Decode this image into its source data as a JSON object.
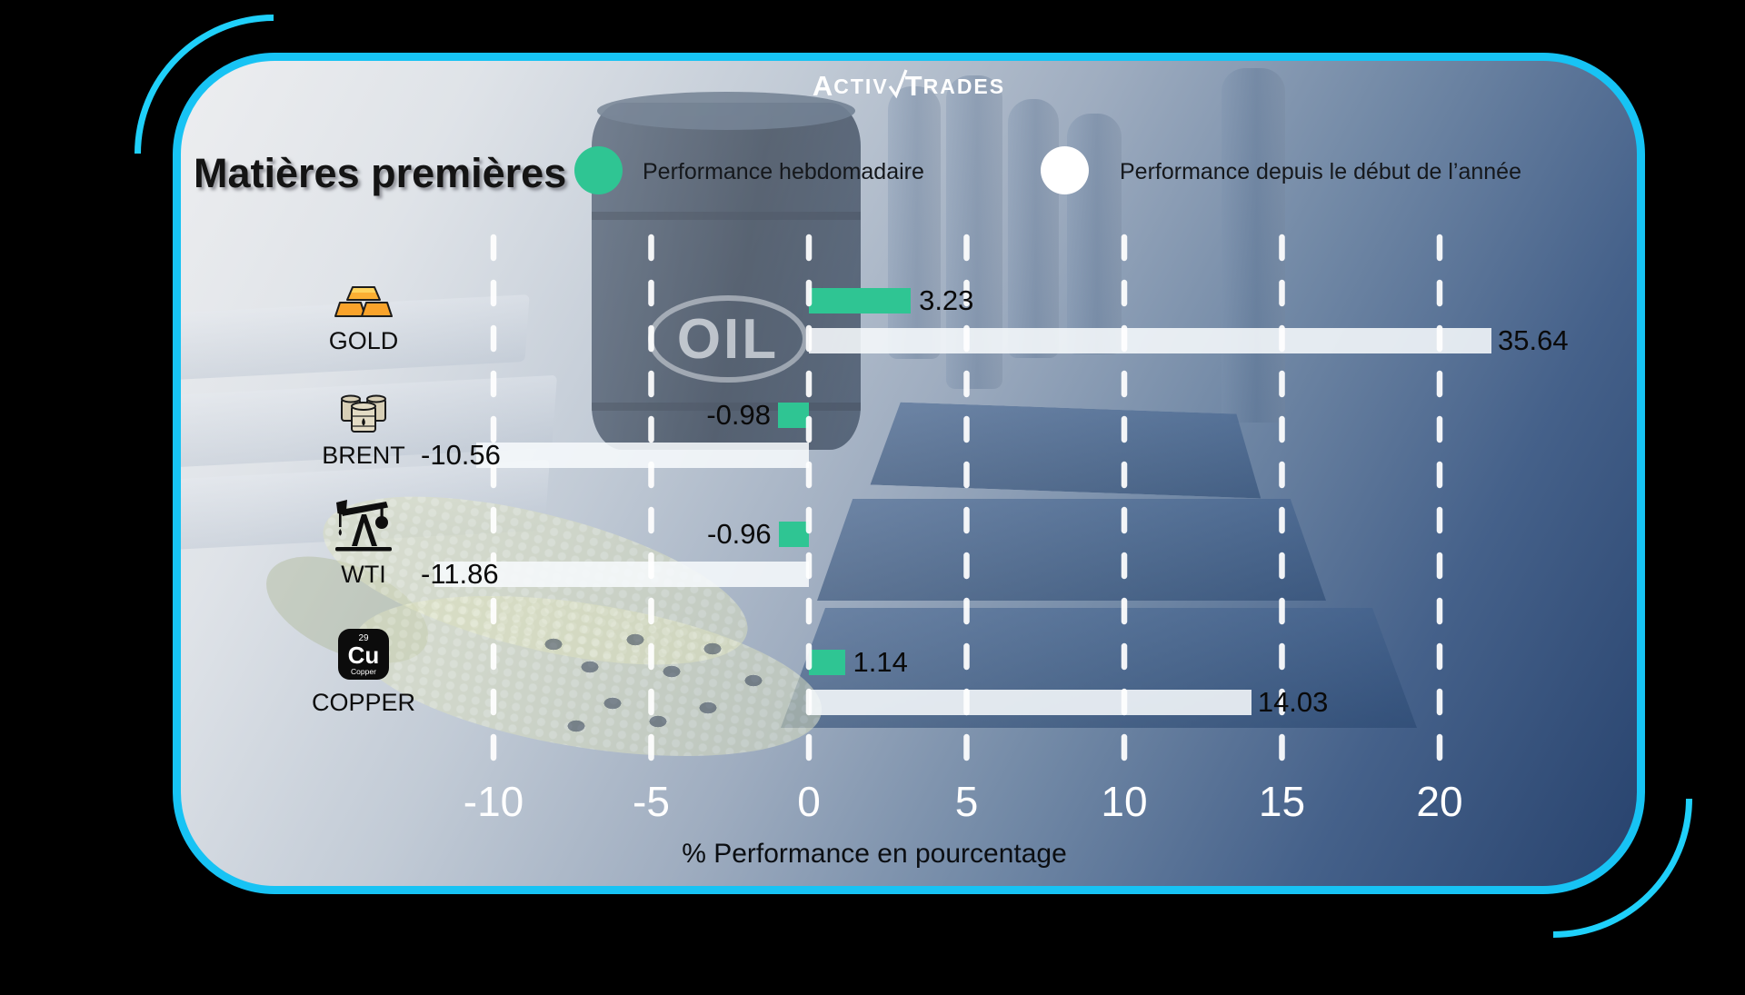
{
  "brand": {
    "name": "ActivTrades",
    "logo_activ_initial": "A",
    "logo_activ_rest": "CTIV",
    "logo_trades_initial": "T",
    "logo_trades_rest": "RADES"
  },
  "header": {
    "title": "Matières premières"
  },
  "legend": {
    "weekly": {
      "label": "Performance hebdomadaire",
      "color": "#2fc593"
    },
    "ytd": {
      "label": "Performance depuis le début de l’année",
      "color": "#ffffff"
    }
  },
  "background": {
    "oil_label": "OIL"
  },
  "icons": {
    "copper": {
      "atomic_number": "29",
      "symbol": "Cu",
      "name": "Copper"
    }
  },
  "chart_data": {
    "type": "bar",
    "orientation": "horizontal",
    "title": "Matières premières",
    "xlabel": "% Performance en pourcentage",
    "categories": [
      "GOLD",
      "BRENT",
      "WTI",
      "COPPER"
    ],
    "row_icons": [
      "gold-bars-icon",
      "oil-barrels-icon",
      "pump-jack-icon",
      "copper-element-icon"
    ],
    "series": [
      {
        "name": "Performance hebdomadaire",
        "color": "#2fc593",
        "values": [
          3.23,
          -0.98,
          -0.96,
          1.14
        ]
      },
      {
        "name": "Performance depuis le début de l’année",
        "color": "#f4f7fa",
        "values": [
          35.64,
          -10.56,
          -11.86,
          14.03
        ]
      }
    ],
    "value_labels": {
      "weekly": [
        "3.23",
        "-0.98",
        "-0.96",
        "1.14"
      ],
      "ytd": [
        "35.64",
        "-10.56",
        "-11.86",
        "14.03"
      ]
    },
    "x_ticks": [
      -10,
      -5,
      0,
      5,
      10,
      15,
      20
    ],
    "x_tick_labels": [
      "-10",
      "-5",
      "0",
      "5",
      "10",
      "15",
      "20"
    ],
    "xlim": [
      -12.5,
      21.7
    ],
    "grid": "dashed-vertical-white",
    "legend_position": "top",
    "bars_clamped_to_plot_edge": [
      "GOLD ytd 35.64"
    ]
  }
}
